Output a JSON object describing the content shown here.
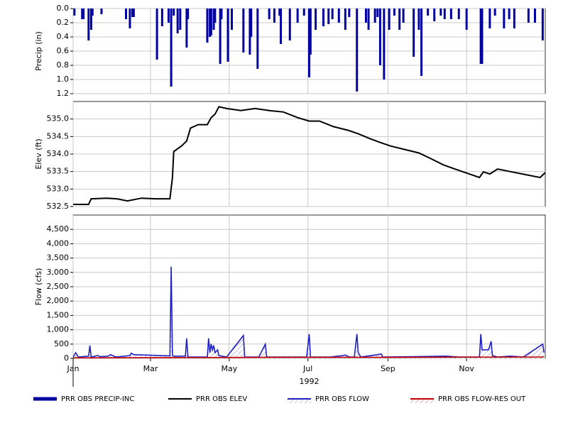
{
  "chart_data": [
    {
      "type": "bar",
      "ylabel": "Precip (in)",
      "ylim": [
        1.2,
        0
      ],
      "yticks": [
        {
          "value": 0,
          "label": "0.0"
        },
        0.2,
        0.4,
        0.6,
        0.8,
        {
          "value": 1,
          "label": "1.0"
        },
        1.2
      ],
      "grid": true,
      "x": [
        2,
        8,
        9,
        13,
        15,
        16,
        23,
        42,
        45,
        47,
        48,
        66,
        70,
        75,
        77,
        79,
        82,
        84,
        89,
        90,
        105,
        107,
        108,
        110,
        111,
        115,
        116,
        121,
        124,
        133,
        138,
        139,
        144,
        153,
        157,
        161,
        162,
        169,
        175,
        180,
        184,
        185,
        189,
        195,
        199,
        202,
        207,
        212,
        215,
        221,
        228,
        230,
        235,
        237,
        239,
        242,
        246,
        250,
        254,
        257,
        265,
        269,
        271,
        276,
        281,
        286,
        289,
        294,
        300,
        306,
        317,
        318,
        324,
        328,
        335,
        339,
        343,
        354,
        359,
        365
      ],
      "series": [
        {
          "name": "PRR OBS PRECIP-INC",
          "color": "#0000a0",
          "values": [
            0.1,
            0.15,
            0.15,
            0.45,
            0.3,
            0.1,
            0.08,
            0.15,
            0.28,
            0.12,
            0.12,
            0.72,
            0.25,
            0.2,
            1.1,
            0.1,
            0.35,
            0.3,
            0.55,
            0.15,
            0.48,
            0.4,
            0.38,
            0.3,
            0.2,
            0.78,
            0.15,
            0.75,
            0.3,
            0.62,
            0.65,
            0.4,
            0.85,
            0.15,
            0.2,
            0.1,
            0.5,
            0.45,
            0.2,
            0.1,
            0.97,
            0.65,
            0.3,
            0.25,
            0.22,
            0.15,
            0.2,
            0.3,
            0.12,
            1.17,
            0.2,
            0.3,
            0.2,
            0.12,
            0.8,
            1.0,
            0.3,
            0.1,
            0.3,
            0.2,
            0.68,
            0.3,
            0.95,
            0.1,
            0.18,
            0.1,
            0.15,
            0.15,
            0.15,
            0.3,
            0.78,
            0.78,
            0.28,
            0.1,
            0.28,
            0.15,
            0.28,
            0.2,
            0.2,
            0.45
          ]
        }
      ]
    },
    {
      "type": "line",
      "ylabel": "Elev (ft)",
      "ylim": [
        532.5,
        535.5
      ],
      "yticks": [
        532.5,
        {
          "value": 533,
          "label": "533.0"
        },
        533.5,
        {
          "value": 534,
          "label": "534.0"
        },
        534.5,
        {
          "value": 535,
          "label": "535.0"
        }
      ],
      "grid": true,
      "x": [
        1,
        13,
        15,
        27,
        35,
        43,
        54,
        65,
        76,
        78,
        79,
        85,
        89,
        92,
        98,
        105,
        108,
        111,
        114,
        120,
        131,
        142,
        153,
        164,
        175,
        184,
        192,
        203,
        214,
        222,
        231,
        239,
        247,
        258,
        269,
        277,
        288,
        297,
        308,
        316,
        319,
        324,
        330,
        341,
        352,
        363,
        367
      ],
      "series": [
        {
          "name": "PRR OBS ELEV",
          "color": "#000000",
          "values": [
            532.56,
            532.56,
            532.72,
            532.74,
            532.72,
            532.66,
            532.74,
            532.72,
            532.72,
            533.33,
            534.07,
            534.23,
            534.37,
            534.74,
            534.84,
            534.84,
            535.04,
            535.14,
            535.35,
            535.3,
            535.24,
            535.3,
            535.24,
            535.2,
            535.04,
            534.94,
            534.94,
            534.78,
            534.68,
            534.58,
            534.44,
            534.33,
            534.23,
            534.13,
            534.03,
            533.89,
            533.69,
            533.57,
            533.43,
            533.33,
            533.49,
            533.43,
            533.57,
            533.49,
            533.41,
            533.33,
            533.47
          ]
        }
      ]
    },
    {
      "type": "line",
      "ylabel": "Flow (cfs)",
      "xlabel": "1992",
      "xlim": [
        1,
        367
      ],
      "ylim": [
        0,
        5000
      ],
      "yticks": [
        0,
        500,
        {
          "value": 1000,
          "label": "1,000"
        },
        {
          "value": 1500,
          "label": "1,500"
        },
        {
          "value": 2000,
          "label": "2,000"
        },
        {
          "value": 2500,
          "label": "2,500"
        },
        {
          "value": 3000,
          "label": "3,000"
        },
        {
          "value": 3500,
          "label": "3,500"
        },
        {
          "value": 4000,
          "label": "4,000"
        },
        {
          "value": 4500,
          "label": "4,500"
        }
      ],
      "xticks": [
        {
          "value": 1,
          "label": "Jan"
        },
        {
          "value": 61,
          "label": "Mar"
        },
        {
          "value": 122,
          "label": "May"
        },
        {
          "value": 183,
          "label": "Jul"
        },
        {
          "value": 245,
          "label": "Sep"
        },
        {
          "value": 306,
          "label": "Nov"
        }
      ],
      "grid": true,
      "series": [
        {
          "name": "PRR OBS FLOW",
          "color": "#2020c0",
          "hatch": true,
          "x": [
            1,
            3,
            5,
            13,
            14,
            15,
            20,
            22,
            28,
            30,
            34,
            45,
            46,
            48,
            76,
            77,
            78,
            79,
            88,
            89,
            90,
            105,
            106,
            107,
            108,
            109,
            110,
            111,
            113,
            114,
            120,
            133,
            134,
            145,
            150,
            151,
            165,
            182,
            184,
            185,
            200,
            210,
            212,
            215,
            219,
            221,
            222,
            224,
            240,
            241,
            265,
            290,
            300,
            316,
            317,
            318,
            323,
            325,
            326,
            330,
            340,
            350,
            365,
            366
          ],
          "values": [
            50,
            200,
            50,
            80,
            450,
            50,
            100,
            60,
            80,
            130,
            50,
            100,
            180,
            130,
            90,
            3200,
            100,
            80,
            80,
            700,
            50,
            50,
            700,
            200,
            500,
            300,
            450,
            200,
            300,
            100,
            50,
            800,
            50,
            50,
            500,
            50,
            50,
            50,
            850,
            50,
            50,
            100,
            120,
            50,
            50,
            850,
            200,
            50,
            150,
            50,
            60,
            80,
            50,
            50,
            850,
            300,
            300,
            600,
            100,
            50,
            80,
            50,
            500,
            200
          ]
        },
        {
          "name": "PRR OBS FLOW-RES OUT",
          "color": "#c00000",
          "hatch": true,
          "x": [
            1,
            100,
            160,
            250,
            366
          ],
          "values": [
            20,
            30,
            40,
            40,
            50
          ]
        }
      ]
    }
  ]
}
